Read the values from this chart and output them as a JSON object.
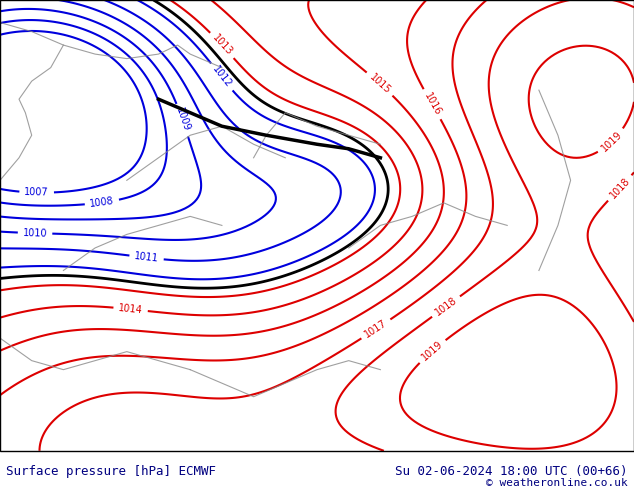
{
  "title_left": "Surface pressure [hPa] ECMWF",
  "title_right": "Su 02-06-2024 18:00 UTC (00+66)",
  "copyright": "© weatheronline.co.uk",
  "bg_color": "#c8f0a0",
  "border_color": "#333333",
  "bottom_bar_color": "#d8d8d8",
  "title_color": "#000080",
  "copyright_color": "#000080",
  "figsize": [
    6.34,
    4.9
  ],
  "dpi": 100
}
